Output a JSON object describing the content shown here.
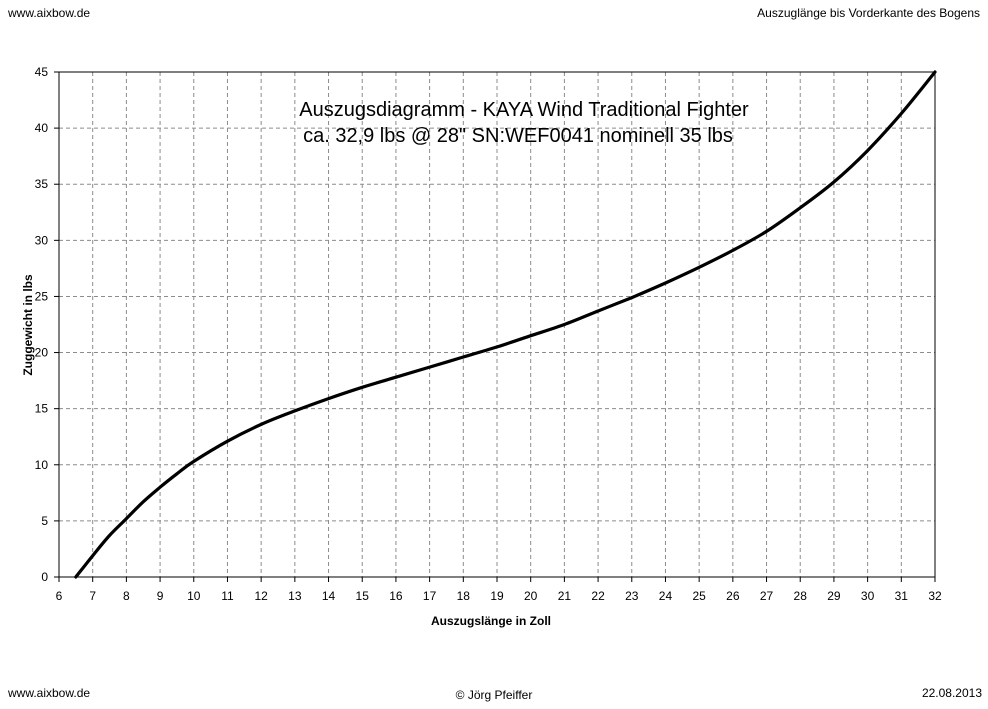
{
  "header": {
    "left": "www.aixbow.de",
    "right": "Auszuglänge bis Vorderkante des Bogens"
  },
  "footer": {
    "left": "www.aixbow.de",
    "center": "© Jörg Pfeiffer",
    "right": "22.08.2013"
  },
  "chart_data": {
    "type": "line",
    "title": "Auszugsdiagramm - KAYA Wind Traditional Fighter",
    "subtitle": "ca. 32,9 lbs @ 28\" SN:WEF0041 nominell 35 lbs",
    "xlabel": "Auszugslänge in Zoll",
    "ylabel": "Zuggewicht in lbs",
    "xlim": [
      6,
      32
    ],
    "ylim": [
      0,
      45
    ],
    "xticks": [
      6,
      7,
      8,
      9,
      10,
      11,
      12,
      13,
      14,
      15,
      16,
      17,
      18,
      19,
      20,
      21,
      22,
      23,
      24,
      25,
      26,
      27,
      28,
      29,
      30,
      31,
      32
    ],
    "yticks": [
      0,
      5,
      10,
      15,
      20,
      25,
      30,
      35,
      40,
      45
    ],
    "grid": true,
    "line_color": "#000000",
    "series": [
      {
        "x": [
          6.5,
          7,
          7.5,
          8,
          8.5,
          9,
          9.5,
          10,
          11,
          12,
          13,
          14,
          15,
          16,
          17,
          18,
          19,
          20,
          21,
          22,
          23,
          24,
          25,
          26,
          27,
          28,
          29,
          30,
          31,
          32
        ],
        "y": [
          0,
          1.9,
          3.7,
          5.2,
          6.7,
          8.0,
          9.2,
          10.3,
          12.1,
          13.6,
          14.8,
          15.9,
          16.9,
          17.8,
          18.7,
          19.6,
          20.5,
          21.5,
          22.5,
          23.7,
          24.9,
          26.2,
          27.6,
          29.1,
          30.8,
          32.9,
          35.2,
          38.0,
          41.3,
          45.0
        ]
      }
    ]
  }
}
